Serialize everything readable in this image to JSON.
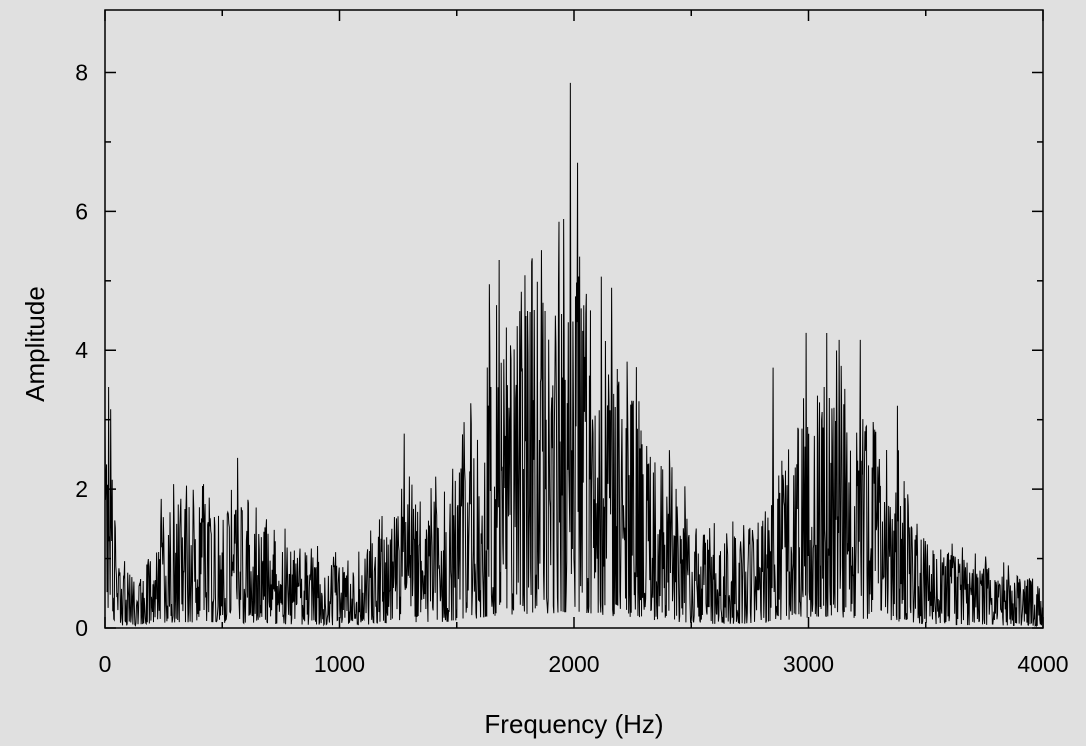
{
  "chart_data": {
    "type": "line",
    "title": "",
    "xlabel": "Frequency (Hz)",
    "ylabel": "Amplitude",
    "xlim": [
      0,
      4000
    ],
    "ylim": [
      0,
      8.9
    ],
    "x_ticks": [
      0,
      1000,
      2000,
      3000,
      4000
    ],
    "x_tick_labels": [
      "0",
      "1000",
      "2000",
      "3000",
      "4000"
    ],
    "y_ticks": [
      0,
      2,
      4,
      6,
      8
    ],
    "y_tick_labels": [
      "0",
      "2",
      "4",
      "6",
      "8"
    ],
    "grid": false,
    "legend": "none",
    "colors": {
      "background": "#e0e0e0",
      "line": "#000000",
      "axes": "#000000"
    },
    "series": [
      {
        "x": [
          0,
          50,
          100,
          150,
          200,
          250,
          300,
          350,
          400,
          450,
          500,
          550,
          600,
          650,
          700,
          750,
          800,
          850,
          900,
          950,
          1000,
          1050,
          1100,
          1150,
          1200,
          1250,
          1300,
          1350,
          1400,
          1450,
          1500,
          1550,
          1600,
          1650,
          1700,
          1750,
          1800,
          1850,
          1900,
          1950,
          2000,
          2050,
          2100,
          2150,
          2200,
          2250,
          2300,
          2350,
          2400,
          2450,
          2500,
          2550,
          2600,
          2650,
          2700,
          2750,
          2800,
          2850,
          2900,
          2950,
          3000,
          3050,
          3100,
          3150,
          3200,
          3250,
          3300,
          3350,
          3400,
          3450,
          3500,
          3550,
          3600,
          3650,
          3700,
          3750,
          3800,
          3850,
          3900,
          3950,
          4000
        ],
        "values": [
          2.85,
          0.5,
          0.45,
          0.4,
          0.6,
          0.95,
          1.0,
          1.05,
          0.95,
          1.0,
          0.9,
          1.0,
          0.85,
          0.8,
          0.75,
          0.7,
          0.65,
          0.6,
          0.55,
          0.5,
          0.5,
          0.45,
          0.55,
          0.7,
          0.85,
          0.9,
          1.0,
          1.0,
          1.05,
          1.1,
          1.2,
          1.5,
          1.8,
          2.1,
          2.3,
          2.4,
          2.5,
          2.55,
          2.6,
          2.75,
          2.9,
          2.7,
          2.4,
          2.2,
          2.0,
          1.8,
          1.6,
          1.4,
          1.2,
          1.0,
          0.9,
          0.8,
          0.7,
          0.75,
          0.75,
          0.8,
          0.9,
          1.1,
          1.4,
          1.7,
          1.9,
          2.0,
          1.95,
          1.9,
          1.8,
          1.6,
          1.45,
          1.3,
          1.1,
          0.9,
          0.75,
          0.65,
          0.6,
          0.55,
          0.5,
          0.5,
          0.45,
          0.45,
          0.45,
          0.45,
          0.2
        ],
        "peaks": [
          {
            "x": 0,
            "y": 2.85
          },
          {
            "x": 565,
            "y": 2.45
          },
          {
            "x": 1275,
            "y": 2.8
          },
          {
            "x": 1640,
            "y": 4.95
          },
          {
            "x": 1680,
            "y": 5.3
          },
          {
            "x": 1935,
            "y": 5.85
          },
          {
            "x": 1985,
            "y": 7.85
          },
          {
            "x": 2015,
            "y": 6.7
          },
          {
            "x": 2160,
            "y": 4.9
          },
          {
            "x": 2850,
            "y": 3.75
          },
          {
            "x": 2990,
            "y": 4.25
          },
          {
            "x": 3130,
            "y": 4.15
          },
          {
            "x": 3220,
            "y": 4.15
          },
          {
            "x": 3380,
            "y": 3.2
          }
        ]
      }
    ]
  }
}
